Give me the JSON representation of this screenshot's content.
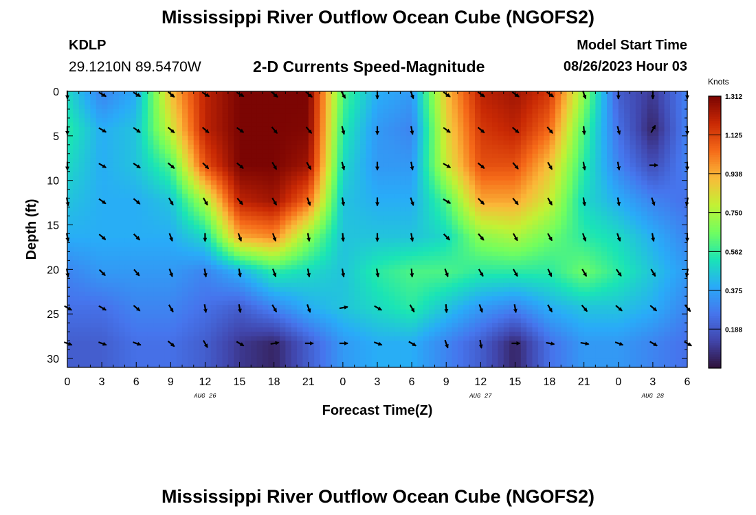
{
  "header": {
    "title": "Mississippi River Outflow Ocean Cube (NGOFS2)",
    "station": "KDLP",
    "coords": "29.1210N  89.5470W",
    "subtitle": "2-D Currents Speed-Magnitude",
    "model_label": "Model Start Time",
    "model_date": "08/26/2023 Hour 03"
  },
  "footer": {
    "title": "Mississippi River Outflow Ocean Cube (NGOFS2)"
  },
  "colorbar": {
    "units": "Knots",
    "ticks": [
      "1.312",
      "1.125",
      "0.938",
      "0.750",
      "0.562",
      "0.375",
      "0.188"
    ],
    "tick_values": [
      1.312,
      1.125,
      0.938,
      0.75,
      0.562,
      0.375,
      0.188
    ],
    "range": [
      0,
      1.312
    ],
    "colormap": "turbo"
  },
  "chart_data": {
    "type": "heatmap",
    "xlabel": "Forecast Time(Z)",
    "ylabel": "Depth (ft)",
    "x_tick_labels": [
      "0",
      "3",
      "6",
      "9",
      "12",
      "15",
      "18",
      "21",
      "0",
      "3",
      "6",
      "9",
      "12",
      "15",
      "18",
      "21",
      "0",
      "3",
      "6"
    ],
    "x_range_hours": [
      0,
      54
    ],
    "y_ticks": [
      "0",
      "5",
      "10",
      "15",
      "20",
      "25",
      "30"
    ],
    "y_range": [
      0,
      31
    ],
    "y_reversed": true,
    "date_labels": [
      {
        "label": "AUG 26",
        "hour": 12
      },
      {
        "label": "AUG 27",
        "hour": 36
      },
      {
        "label": "AUG 28",
        "hour": 51
      }
    ],
    "depths": [
      0.3,
      4.3,
      8.3,
      12.3,
      16.3,
      20.3,
      24.3,
      28.3
    ],
    "times": [
      0,
      3,
      6,
      9,
      12,
      15,
      18,
      21,
      24,
      27,
      30,
      33,
      36,
      39,
      42,
      45,
      48,
      51,
      54
    ],
    "speed": [
      [
        0.5,
        0.3,
        0.4,
        0.9,
        1.2,
        1.31,
        1.31,
        1.31,
        0.6,
        0.4,
        0.35,
        0.9,
        1.2,
        1.25,
        1.15,
        0.7,
        0.2,
        0.1,
        0.3
      ],
      [
        0.55,
        0.4,
        0.45,
        0.8,
        1.2,
        1.31,
        1.31,
        1.3,
        0.55,
        0.35,
        0.3,
        0.85,
        1.15,
        1.2,
        1.05,
        0.6,
        0.25,
        0.05,
        0.3
      ],
      [
        0.5,
        0.4,
        0.45,
        0.6,
        1.1,
        1.31,
        1.31,
        1.25,
        0.5,
        0.35,
        0.35,
        0.8,
        1.1,
        1.1,
        0.9,
        0.55,
        0.3,
        0.15,
        0.3
      ],
      [
        0.45,
        0.4,
        0.4,
        0.45,
        0.75,
        1.2,
        1.25,
        1.05,
        0.45,
        0.4,
        0.4,
        0.6,
        0.95,
        0.95,
        0.8,
        0.5,
        0.4,
        0.3,
        0.25
      ],
      [
        0.4,
        0.4,
        0.4,
        0.4,
        0.5,
        0.95,
        1.0,
        0.7,
        0.45,
        0.45,
        0.45,
        0.5,
        0.7,
        0.75,
        0.65,
        0.55,
        0.5,
        0.4,
        0.3
      ],
      [
        0.3,
        0.35,
        0.35,
        0.35,
        0.3,
        0.4,
        0.55,
        0.5,
        0.45,
        0.55,
        0.6,
        0.6,
        0.55,
        0.55,
        0.55,
        0.65,
        0.55,
        0.45,
        0.35
      ],
      [
        0.25,
        0.25,
        0.3,
        0.3,
        0.25,
        0.2,
        0.3,
        0.4,
        0.45,
        0.5,
        0.55,
        0.45,
        0.35,
        0.3,
        0.4,
        0.45,
        0.45,
        0.4,
        0.3
      ],
      [
        0.2,
        0.2,
        0.25,
        0.25,
        0.2,
        0.1,
        0.05,
        0.2,
        0.35,
        0.4,
        0.4,
        0.3,
        0.2,
        0.05,
        0.25,
        0.35,
        0.35,
        0.3,
        0.25
      ]
    ],
    "direction_deg": [
      [
        180,
        120,
        120,
        130,
        120,
        120,
        130,
        130,
        150,
        180,
        160,
        125,
        125,
        125,
        125,
        160,
        180,
        180,
        180
      ],
      [
        180,
        120,
        125,
        130,
        130,
        125,
        140,
        140,
        165,
        180,
        170,
        125,
        130,
        130,
        140,
        175,
        165,
        30,
        180
      ],
      [
        180,
        120,
        125,
        130,
        135,
        130,
        150,
        150,
        165,
        180,
        170,
        120,
        130,
        140,
        150,
        170,
        170,
        90,
        180
      ],
      [
        170,
        125,
        130,
        150,
        150,
        140,
        150,
        160,
        170,
        180,
        160,
        120,
        135,
        140,
        150,
        170,
        170,
        160,
        190
      ],
      [
        170,
        130,
        135,
        160,
        180,
        160,
        160,
        170,
        175,
        180,
        170,
        135,
        140,
        150,
        150,
        160,
        160,
        170,
        180
      ],
      [
        170,
        135,
        140,
        160,
        170,
        170,
        160,
        170,
        170,
        170,
        175,
        160,
        150,
        150,
        155,
        150,
        145,
        150,
        190
      ],
      [
        120,
        120,
        130,
        150,
        170,
        170,
        150,
        160,
        80,
        120,
        150,
        175,
        160,
        170,
        150,
        140,
        130,
        130,
        140
      ],
      [
        110,
        110,
        110,
        130,
        150,
        120,
        80,
        90,
        90,
        110,
        120,
        160,
        170,
        90,
        100,
        100,
        110,
        120,
        120
      ]
    ]
  }
}
